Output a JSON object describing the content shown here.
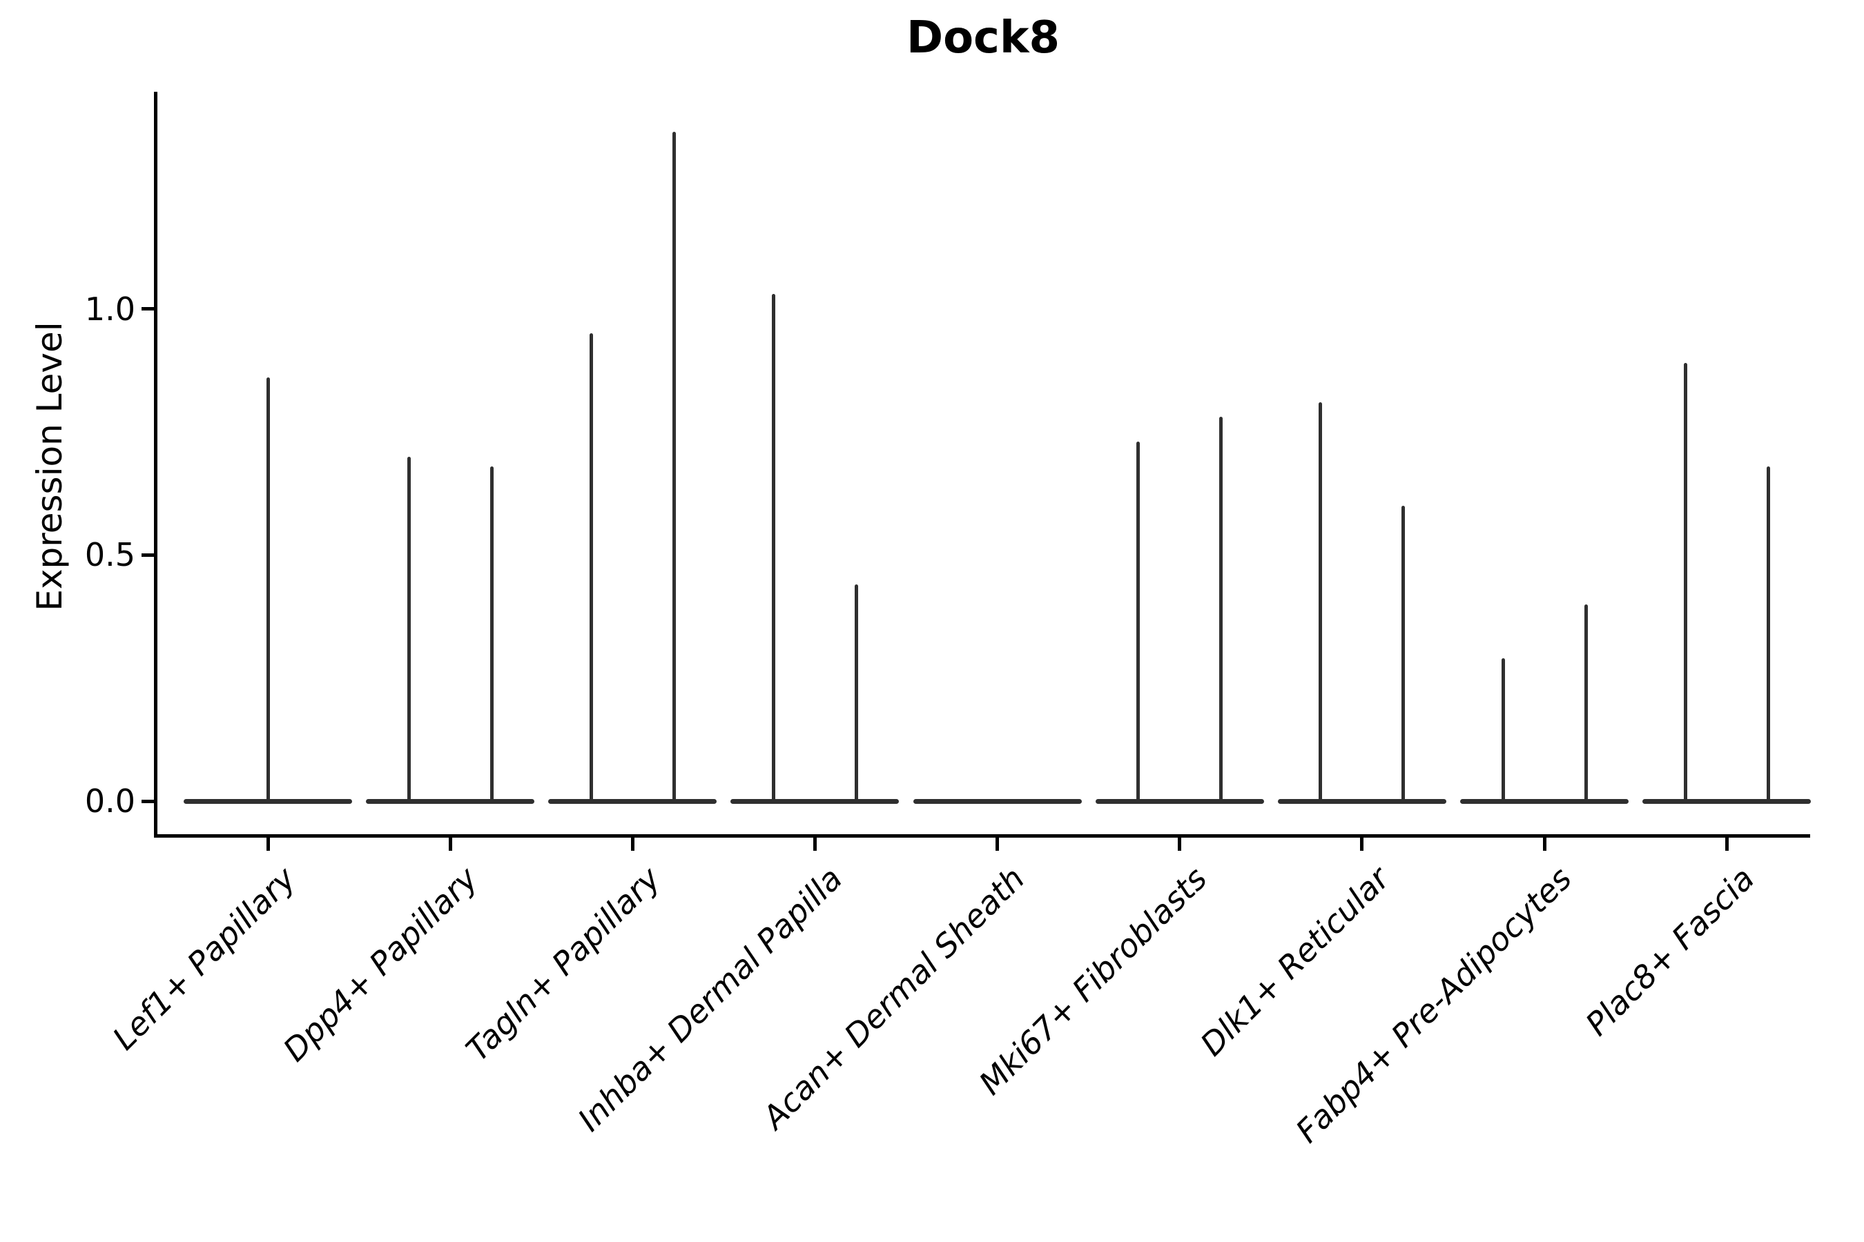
{
  "title": "Dock8",
  "y_axis": {
    "label": "Expression Level",
    "ticks": [
      "0.0",
      "0.5",
      "1.0"
    ]
  },
  "colors": {
    "violin": "#2f2f2f",
    "axis": "#000000",
    "background": "#ffffff"
  },
  "chart_data": {
    "type": "violin",
    "title": "Dock8",
    "xlabel": "",
    "ylabel": "Expression Level",
    "ylim": [
      -0.07,
      1.44
    ],
    "yticks": [
      0.0,
      0.5,
      1.0
    ],
    "grid": false,
    "legend": "none",
    "description": "Degenerate violins: wide flat body at expression 0 with thin vertical spikes reaching the maximum expression values; x tick labels italic, rotated 45 degrees.",
    "categories": [
      "Lef1+ Papillary",
      "Dpp4+ Papillary",
      "Tagln+ Papillary",
      "Inhba+ Dermal Papilla",
      "Acan+ Dermal Sheath",
      "Mki67+ Fibroblasts",
      "Dlk1+ Reticular",
      "Fabp4+ Pre-Adipocytes",
      "Plac8+ Fascia"
    ],
    "series": [
      {
        "category": "Lef1+ Papillary",
        "baseline_value": 0,
        "spikes": [
          {
            "pos": "center",
            "max": 0.86
          }
        ]
      },
      {
        "category": "Dpp4+ Papillary",
        "baseline_value": 0,
        "spikes": [
          {
            "pos": "left",
            "max": 0.7
          },
          {
            "pos": "right",
            "max": 0.68
          }
        ]
      },
      {
        "category": "Tagln+ Papillary",
        "baseline_value": 0,
        "spikes": [
          {
            "pos": "left",
            "max": 0.95
          },
          {
            "pos": "right",
            "max": 1.36
          }
        ]
      },
      {
        "category": "Inhba+ Dermal Papilla",
        "baseline_value": 0,
        "spikes": [
          {
            "pos": "left",
            "max": 1.03
          },
          {
            "pos": "right",
            "max": 0.44
          }
        ]
      },
      {
        "category": "Acan+ Dermal Sheath",
        "baseline_value": 0,
        "spikes": []
      },
      {
        "category": "Mki67+ Fibroblasts",
        "baseline_value": 0,
        "spikes": [
          {
            "pos": "left",
            "max": 0.73
          },
          {
            "pos": "right",
            "max": 0.78
          }
        ]
      },
      {
        "category": "Dlk1+ Reticular",
        "baseline_value": 0,
        "spikes": [
          {
            "pos": "left",
            "max": 0.81
          },
          {
            "pos": "right",
            "max": 0.6
          }
        ]
      },
      {
        "category": "Fabp4+ Pre-Adipocytes",
        "baseline_value": 0,
        "spikes": [
          {
            "pos": "left",
            "max": 0.29
          },
          {
            "pos": "right",
            "max": 0.4
          }
        ]
      },
      {
        "category": "Plac8+ Fascia",
        "baseline_value": 0,
        "spikes": [
          {
            "pos": "left",
            "max": 0.89
          },
          {
            "pos": "right",
            "max": 0.68
          }
        ]
      }
    ]
  }
}
